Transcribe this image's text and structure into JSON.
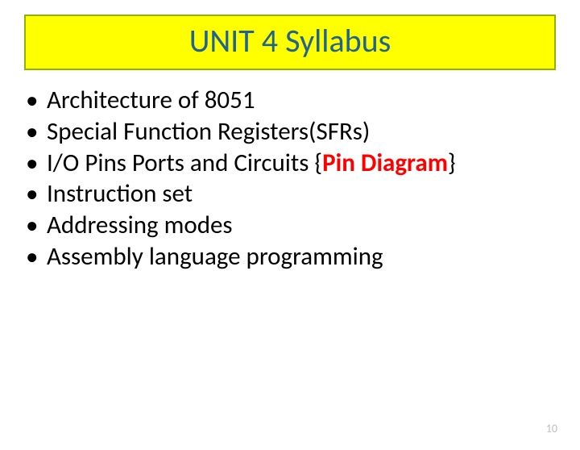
{
  "title": {
    "text": "UNIT 4  Syllabus",
    "background_color": "#ffff00",
    "border_color": "#8bb400",
    "text_color": "#1f6390",
    "fontsize": 40
  },
  "bullets": {
    "fontsize": 31,
    "text_color": "#000000",
    "items": [
      {
        "text": "Architecture  of  8051"
      },
      {
        "text": "Special Function Registers(SFRs)"
      },
      {
        "prefix": "I/O Pins Ports and Circuits   {",
        "highlight": "Pin Diagram",
        "suffix": "}",
        "highlight_color": "#ff0000"
      },
      {
        "text": "Instruction set"
      },
      {
        "text": "Addressing modes"
      },
      {
        "text": "Assembly language programming"
      }
    ]
  },
  "page_number": "10",
  "background_color": "#ffffff"
}
